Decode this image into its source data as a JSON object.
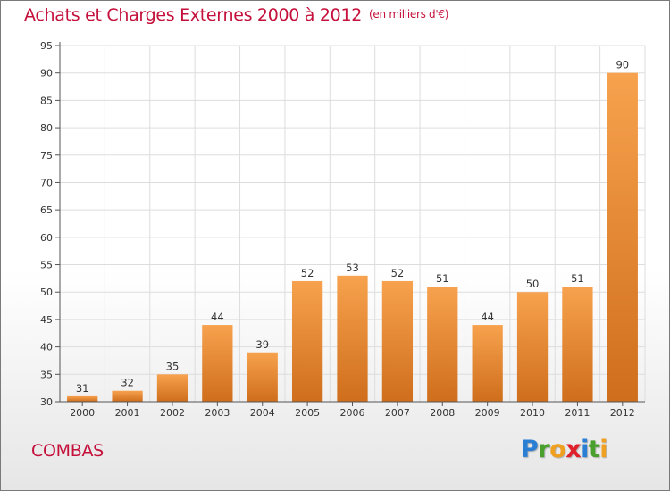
{
  "header": {
    "title": "Achats et Charges Externes 2000 à 2012",
    "subtitle": "(en milliers d'€)"
  },
  "footer": {
    "city": "COMBAS",
    "logo": {
      "text": "Proxiti",
      "letters": [
        {
          "ch": "P",
          "color": "#2a7fd4"
        },
        {
          "ch": "r",
          "color": "#4aa02c"
        },
        {
          "ch": "o",
          "color": "#f0a020"
        },
        {
          "ch": "x",
          "color": "#e0202a"
        },
        {
          "ch": "i",
          "color": "#2a7fd4"
        },
        {
          "ch": "t",
          "color": "#4aa02c"
        },
        {
          "ch": "i",
          "color": "#f0a020"
        }
      ]
    }
  },
  "colors": {
    "title": "#c4103a",
    "bar_light": "#f7a24e",
    "bar_dark": "#cf6e1c",
    "grid": "#dddddd",
    "axis": "#555555"
  },
  "chart_data": {
    "type": "bar",
    "categories": [
      "2000",
      "2001",
      "2002",
      "2003",
      "2004",
      "2005",
      "2006",
      "2007",
      "2008",
      "2009",
      "2010",
      "2011",
      "2012"
    ],
    "values": [
      31,
      32,
      35,
      44,
      39,
      52,
      53,
      52,
      51,
      44,
      50,
      51,
      90
    ],
    "title": "Achats et Charges Externes 2000 à 2012",
    "subtitle": "(en milliers d'€)",
    "ylim": [
      30,
      95
    ],
    "yticks": [
      30,
      35,
      40,
      45,
      50,
      55,
      60,
      65,
      70,
      75,
      80,
      85,
      90,
      95
    ],
    "grid": true,
    "legend": "none"
  }
}
